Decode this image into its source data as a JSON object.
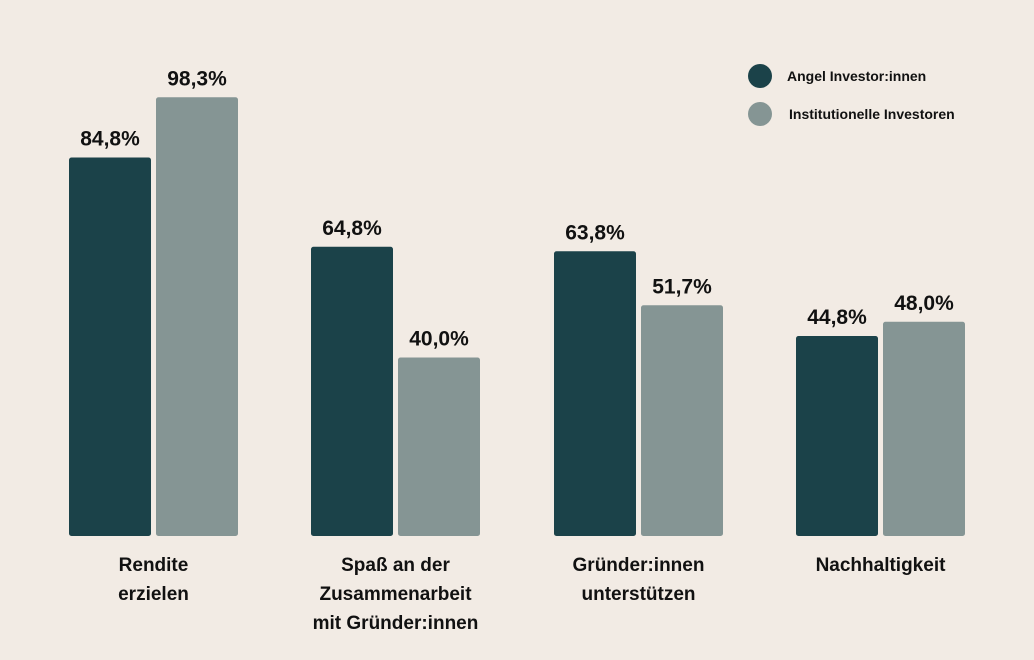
{
  "chart_data": {
    "type": "bar",
    "categories": [
      [
        "Rendite",
        "erzielen"
      ],
      [
        "Spaß an der",
        "Zusammenarbeit",
        "mit Gründer:innen"
      ],
      [
        "Gründer:innen",
        "unterstützen"
      ],
      [
        "Nachhaltigkeit"
      ]
    ],
    "series": [
      {
        "name": "Angel Investor:innen",
        "color": "#1b4249",
        "values": [
          84.8,
          64.8,
          63.8,
          44.8
        ],
        "labels": [
          "84,8%",
          "64,8%",
          "63,8%",
          "44,8%"
        ]
      },
      {
        "name": "Institutionelle Investoren",
        "color": "#859594",
        "values": [
          98.3,
          40.0,
          51.7,
          48.0
        ],
        "labels": [
          "98,3%",
          "40,0%",
          "51,7%",
          "48,0%"
        ]
      }
    ],
    "ylim": [
      0,
      100
    ],
    "grid": false,
    "legend": "top-right"
  }
}
